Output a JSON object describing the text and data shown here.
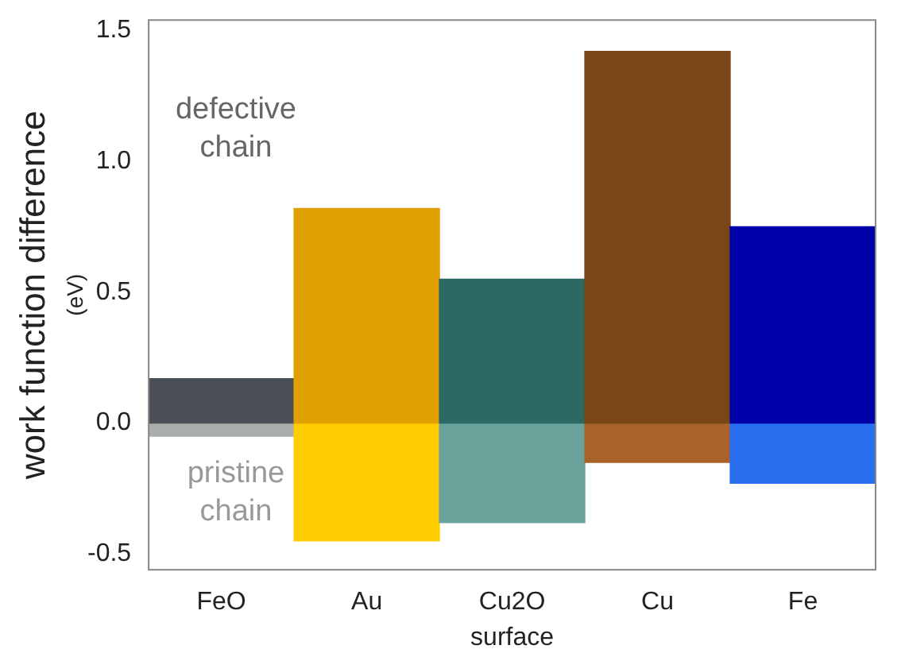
{
  "chart_data": {
    "type": "bar",
    "stacked": true,
    "xlabel": "surface",
    "ylabel": "work function difference\n(eV)",
    "categories": [
      "FeO",
      "Au",
      "Cu2O",
      "Cu",
      "Fe"
    ],
    "series": [
      {
        "name": "defective\nchain",
        "colors": [
          "#4a4f57",
          "#e0a000",
          "#2a6a62",
          "#7a4517",
          "#0000a8"
        ],
        "values": [
          0.17,
          0.82,
          0.55,
          1.42,
          0.75
        ]
      },
      {
        "name": "pristine\nchain",
        "colors": [
          "#a9adad",
          "#ffcc00",
          "#6aa39b",
          "#a8622a",
          "#2a6ef0"
        ],
        "values": [
          -0.05,
          -0.45,
          -0.38,
          -0.15,
          -0.23
        ]
      }
    ],
    "ylim": [
      -0.56,
      1.54
    ],
    "yticks": [
      {
        "value": -0.5,
        "label": "-0.5"
      },
      {
        "value": 0,
        "label": "0.0"
      },
      {
        "value": 0.5,
        "label": "0.5"
      },
      {
        "value": 1,
        "label": "1.0"
      },
      {
        "value": 1.5,
        "label": "1.5"
      }
    ],
    "grid": false,
    "legend": false
  }
}
